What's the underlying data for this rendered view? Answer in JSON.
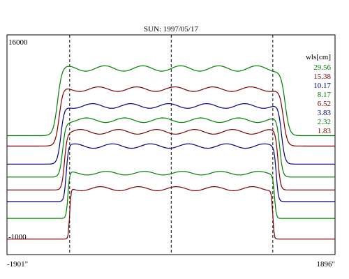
{
  "chart_data": {
    "type": "line",
    "title": "SUN: 1997/05/17",
    "x_range": [
      "-1901\"",
      "1896\""
    ],
    "y_top_label": "16000",
    "y_bottom_label": "-1000",
    "ylim": [
      -1000,
      16000
    ],
    "legend_title": "wls[cm]",
    "legend_position": "top-right",
    "markers": [
      -1901,
      0,
      1896
    ],
    "series": [
      {
        "name": "29.56",
        "color": "#007f00",
        "base": 8200,
        "peak": 13400
      },
      {
        "name": "15.38",
        "color": "#7f0000",
        "base": 7400,
        "peak": 11800
      },
      {
        "name": "10.17",
        "color": "#00007f",
        "base": 6000,
        "peak": 10500
      },
      {
        "name": "8.17",
        "color": "#007f00",
        "base": 5000,
        "peak": 9400
      },
      {
        "name": "6.52",
        "color": "#7f0000",
        "base": 4000,
        "peak": 8500
      },
      {
        "name": "3.83",
        "color": "#00007f",
        "base": 3100,
        "peak": 7400
      },
      {
        "name": "2.32",
        "color": "#007f00",
        "base": 1800,
        "peak": 5300
      },
      {
        "name": "1.83",
        "color": "#7f0000",
        "base": 200,
        "peak": 4100
      }
    ]
  }
}
